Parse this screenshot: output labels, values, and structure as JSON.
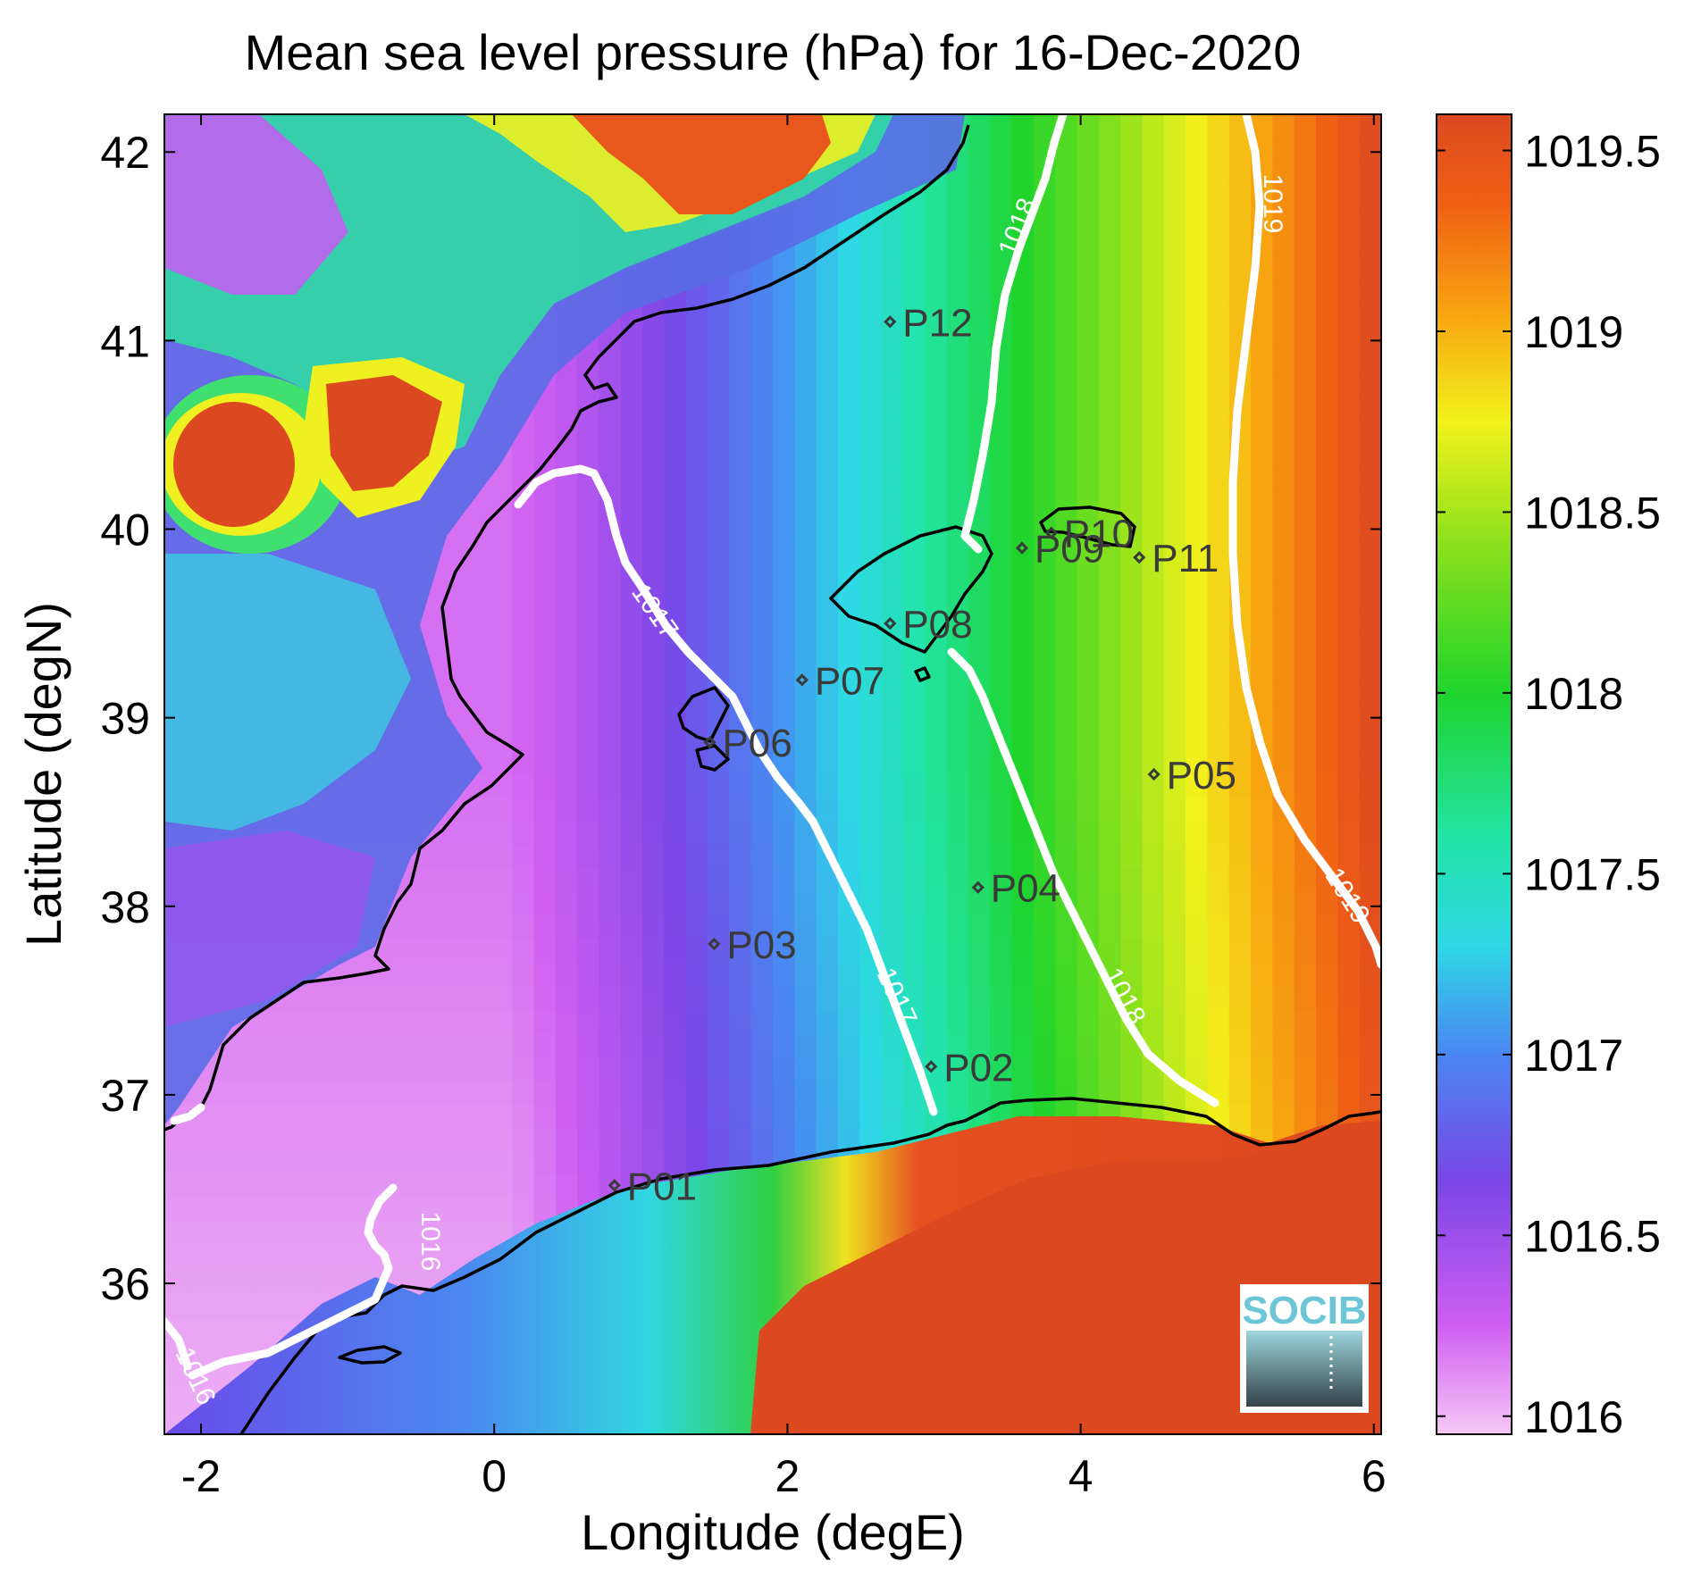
{
  "title": "Mean sea level pressure (hPa) for 16-Dec-2020",
  "x_axis": {
    "label": "Longitude (degE)",
    "ticks": [
      {
        "value": -2,
        "label": "-2"
      },
      {
        "value": 0,
        "label": "0"
      },
      {
        "value": 2,
        "label": "2"
      },
      {
        "value": 4,
        "label": "4"
      },
      {
        "value": 6,
        "label": "6"
      }
    ],
    "range": [
      -2.25,
      6.05
    ]
  },
  "y_axis": {
    "label": "Latitude (degN)",
    "ticks": [
      {
        "value": 36,
        "label": "36"
      },
      {
        "value": 37,
        "label": "37"
      },
      {
        "value": 38,
        "label": "38"
      },
      {
        "value": 39,
        "label": "39"
      },
      {
        "value": 40,
        "label": "40"
      },
      {
        "value": 41,
        "label": "41"
      },
      {
        "value": 42,
        "label": "42"
      }
    ],
    "range": [
      35.2,
      42.2
    ]
  },
  "colorbar": {
    "range": [
      1015.95,
      1019.6
    ],
    "ticks": [
      {
        "value": 1016,
        "label": "1016"
      },
      {
        "value": 1016.5,
        "label": "1016.5"
      },
      {
        "value": 1017,
        "label": "1017"
      },
      {
        "value": 1017.5,
        "label": "1017.5"
      },
      {
        "value": 1018,
        "label": "1018"
      },
      {
        "value": 1018.5,
        "label": "1018.5"
      },
      {
        "value": 1019,
        "label": "1019"
      },
      {
        "value": 1019.5,
        "label": "1019.5"
      }
    ],
    "stops": [
      {
        "value": 1015.95,
        "color": "#f6c8f6"
      },
      {
        "value": 1016.25,
        "color": "#d05ef2"
      },
      {
        "value": 1016.65,
        "color": "#7a46e6"
      },
      {
        "value": 1017.0,
        "color": "#4a86f2"
      },
      {
        "value": 1017.3,
        "color": "#2ed8e6"
      },
      {
        "value": 1017.6,
        "color": "#22e4a6"
      },
      {
        "value": 1018.0,
        "color": "#1fd42c"
      },
      {
        "value": 1018.4,
        "color": "#88e01c"
      },
      {
        "value": 1018.75,
        "color": "#f2f21c"
      },
      {
        "value": 1019.05,
        "color": "#f8a410"
      },
      {
        "value": 1019.35,
        "color": "#f06014"
      },
      {
        "value": 1019.6,
        "color": "#dc4820"
      }
    ]
  },
  "contours": [
    {
      "level": "1016",
      "labels": [
        "1016",
        "1016"
      ]
    },
    {
      "level": "1017",
      "labels": [
        "1017",
        "1017"
      ]
    },
    {
      "level": "1018",
      "labels": [
        "1018",
        "1018"
      ]
    },
    {
      "level": "1019",
      "labels": [
        "1019",
        "1019"
      ]
    }
  ],
  "stations": [
    {
      "name": "P01",
      "lon": 0.82,
      "lat": 36.52
    },
    {
      "name": "P02",
      "lon": 2.98,
      "lat": 37.15
    },
    {
      "name": "P03",
      "lon": 1.5,
      "lat": 37.8
    },
    {
      "name": "P04",
      "lon": 3.3,
      "lat": 38.1
    },
    {
      "name": "P05",
      "lon": 4.5,
      "lat": 38.7
    },
    {
      "name": "P06",
      "lon": 1.47,
      "lat": 38.87
    },
    {
      "name": "P07",
      "lon": 2.1,
      "lat": 39.2
    },
    {
      "name": "P08",
      "lon": 2.7,
      "lat": 39.5
    },
    {
      "name": "P09",
      "lon": 3.6,
      "lat": 39.9
    },
    {
      "name": "P10",
      "lon": 3.8,
      "lat": 39.98
    },
    {
      "name": "P11",
      "lon": 4.4,
      "lat": 39.85
    },
    {
      "name": "P12",
      "lon": 2.7,
      "lat": 41.1
    }
  ],
  "logo": {
    "text": "SOCIB"
  }
}
